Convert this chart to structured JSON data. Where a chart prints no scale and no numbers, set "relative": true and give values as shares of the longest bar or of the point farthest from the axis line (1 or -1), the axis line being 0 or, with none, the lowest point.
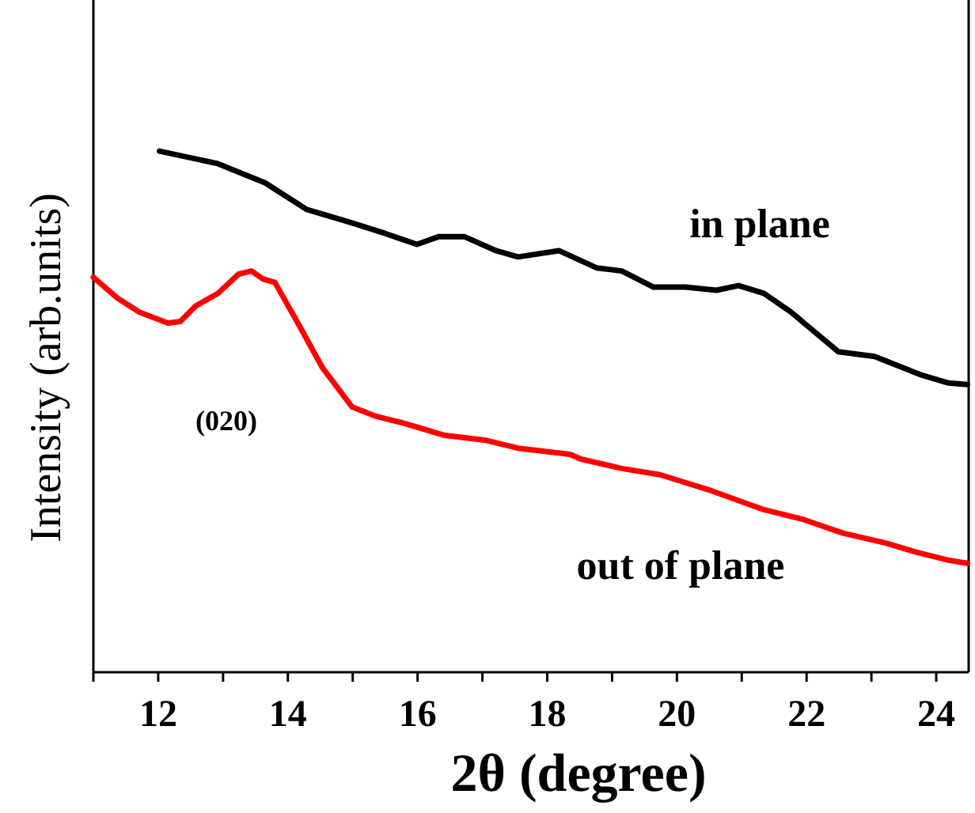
{
  "chart_data": {
    "type": "line",
    "relative": true,
    "xlabel": "2θ (degree)",
    "ylabel": "Intensity (arb.units)",
    "xlim": [
      11,
      24.5
    ],
    "xticks": [
      {
        "value": 11,
        "label": null
      },
      12,
      {
        "value": 13,
        "label": null
      },
      14,
      {
        "value": 15,
        "label": null
      },
      16,
      {
        "value": 17,
        "label": null
      },
      18,
      {
        "value": 19,
        "label": null
      },
      20,
      {
        "value": 21,
        "label": null
      },
      22,
      {
        "value": 23,
        "label": null
      },
      24
    ],
    "grid": false,
    "legend": false,
    "marker": "none",
    "line_style": "solid",
    "annotations": [
      "(020)"
    ],
    "series": [
      {
        "name": "in plane",
        "color": "#000000",
        "x": [
          12.02,
          12.92,
          13.65,
          14.29,
          14.94,
          15.5,
          15.99,
          16.33,
          16.72,
          17.21,
          17.55,
          18.18,
          18.76,
          19.15,
          19.64,
          20.13,
          20.61,
          20.95,
          21.34,
          21.76,
          22.49,
          23.05,
          23.78,
          24.19,
          24.48
        ],
        "values": [
          1.0,
          0.976,
          0.939,
          0.888,
          0.864,
          0.842,
          0.821,
          0.836,
          0.836,
          0.809,
          0.797,
          0.809,
          0.776,
          0.77,
          0.739,
          0.739,
          0.733,
          0.742,
          0.727,
          0.691,
          0.615,
          0.606,
          0.57,
          0.555,
          0.552
        ]
      },
      {
        "name": "out of plane",
        "color": "#ff0000",
        "x": [
          11.0,
          11.37,
          11.71,
          12.15,
          12.34,
          12.58,
          12.92,
          13.24,
          13.44,
          13.61,
          13.8,
          14.14,
          14.53,
          14.99,
          15.36,
          15.84,
          16.4,
          17.06,
          17.55,
          18.35,
          18.52,
          19.15,
          19.74,
          20.54,
          21.34,
          21.93,
          22.56,
          23.22,
          23.7,
          24.19,
          24.48
        ],
        "values": [
          0.758,
          0.718,
          0.691,
          0.67,
          0.673,
          0.703,
          0.727,
          0.764,
          0.77,
          0.755,
          0.748,
          0.673,
          0.585,
          0.509,
          0.491,
          0.476,
          0.455,
          0.445,
          0.43,
          0.418,
          0.409,
          0.391,
          0.379,
          0.348,
          0.312,
          0.294,
          0.267,
          0.248,
          0.23,
          0.215,
          0.209
        ]
      }
    ]
  }
}
